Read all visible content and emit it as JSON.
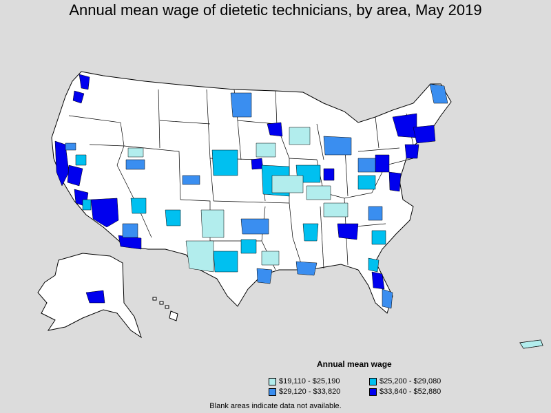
{
  "title": "Annual mean wage of dietetic technicians, by area, May 2019",
  "legend": {
    "title": "Annual mean wage",
    "items": [
      {
        "label": "$19,110 - $25,190",
        "color": "#b2eded"
      },
      {
        "label": "$25,200 - $29,080",
        "color": "#00c0f0"
      },
      {
        "label": "$29,120 - $33,820",
        "color": "#3a8ef0"
      },
      {
        "label": "$33,840 - $52,880",
        "color": "#0000ee"
      }
    ]
  },
  "note": "Blank areas indicate data not available.",
  "colors": {
    "background": "#dcdcdc",
    "land": "#ffffff",
    "border": "#000000"
  }
}
